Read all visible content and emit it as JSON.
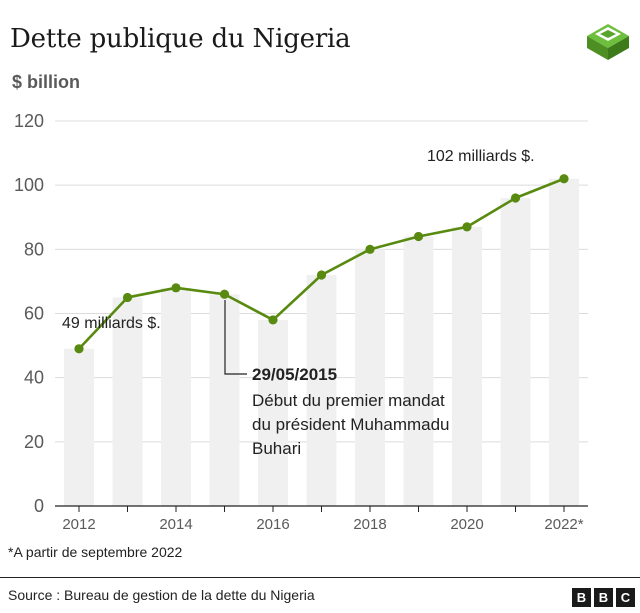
{
  "title": "Dette publique du Nigeria",
  "unit_label": "$ billion",
  "footnote": "*A partir de septembre 2022",
  "source": "Source : Bureau de gestion de la dette du Nigeria",
  "bbc_letters": [
    "B",
    "B",
    "C"
  ],
  "colors": {
    "line": "#588a10",
    "bar": "#f1f0f0",
    "grid": "#dcdcdc",
    "logo": "#58a52c"
  },
  "annotations": {
    "start": "49 milliards $.",
    "end": "102 milliards $.",
    "event_date": "29/05/2015",
    "event_text": [
      "Début du premier mandat",
      "du président Muhammadu",
      "Buhari"
    ]
  },
  "chart_data": {
    "type": "line",
    "title": "Dette publique du Nigeria",
    "ylabel": "$ billion",
    "ylim": [
      0,
      120
    ],
    "yticks": [
      0,
      20,
      40,
      60,
      80,
      100,
      120
    ],
    "xticks": [
      "2012",
      "2014",
      "2016",
      "2018",
      "2020",
      "2022*"
    ],
    "x": [
      2012,
      2013,
      2014,
      2015,
      2016,
      2017,
      2018,
      2019,
      2020,
      2021,
      2022
    ],
    "values": [
      49,
      65,
      68,
      66,
      58,
      72,
      80,
      84,
      87,
      96,
      102
    ],
    "grid": true
  }
}
